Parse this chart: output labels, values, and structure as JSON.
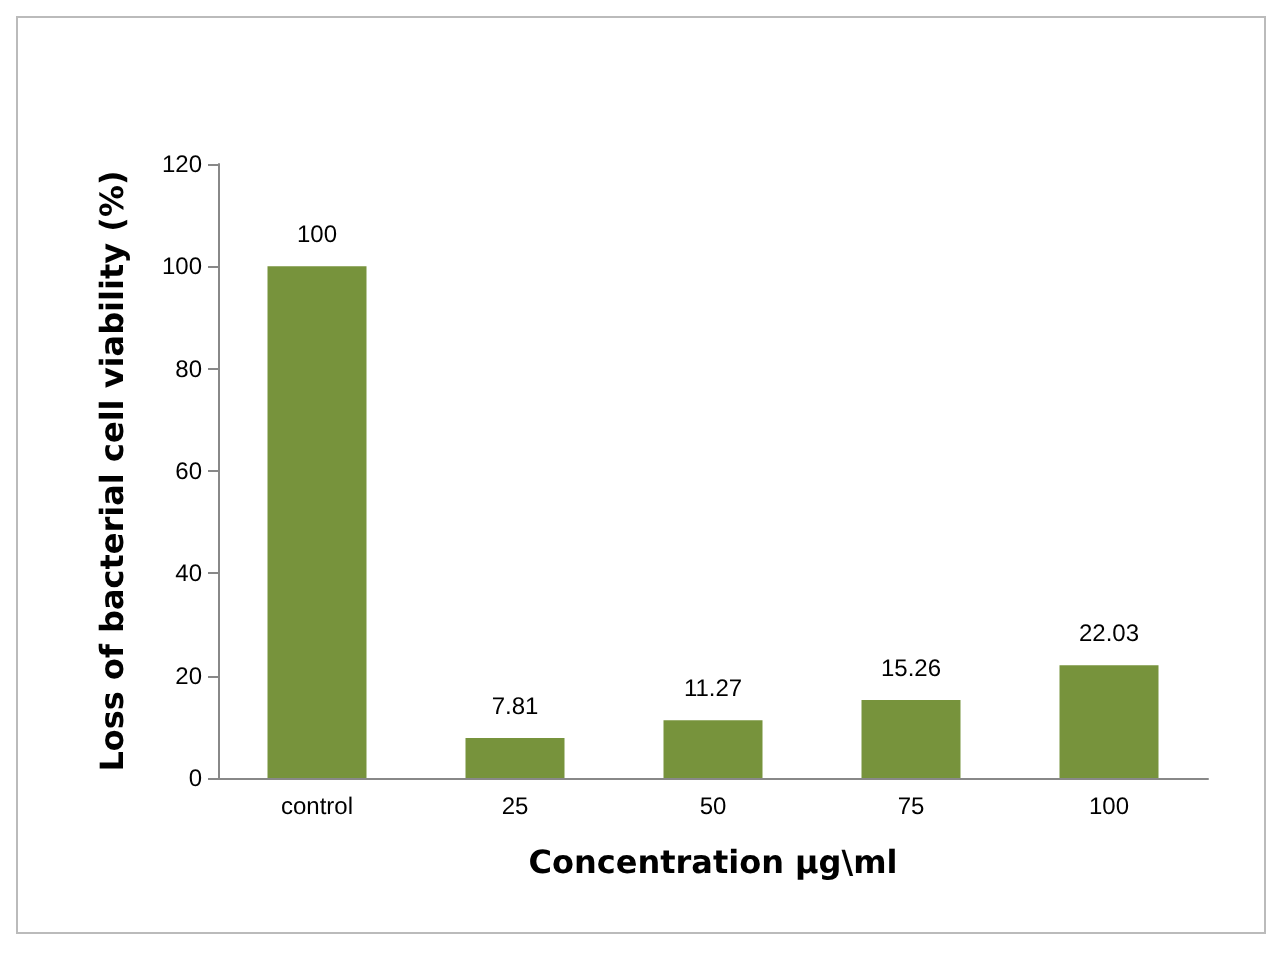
{
  "chart_data": {
    "type": "bar",
    "categories": [
      "control",
      "25",
      "50",
      "75",
      "100"
    ],
    "values": [
      100,
      7.81,
      11.27,
      15.26,
      22.03
    ],
    "color": "#77933c",
    "xlabel": "Concentration µg\\ml",
    "ylabel": "Loss of bacterial cell viability (%)",
    "ylim": [
      0,
      120
    ],
    "yticks": [
      0,
      20,
      40,
      60,
      80,
      100,
      120
    ],
    "data_labels": true,
    "grid": false
  }
}
